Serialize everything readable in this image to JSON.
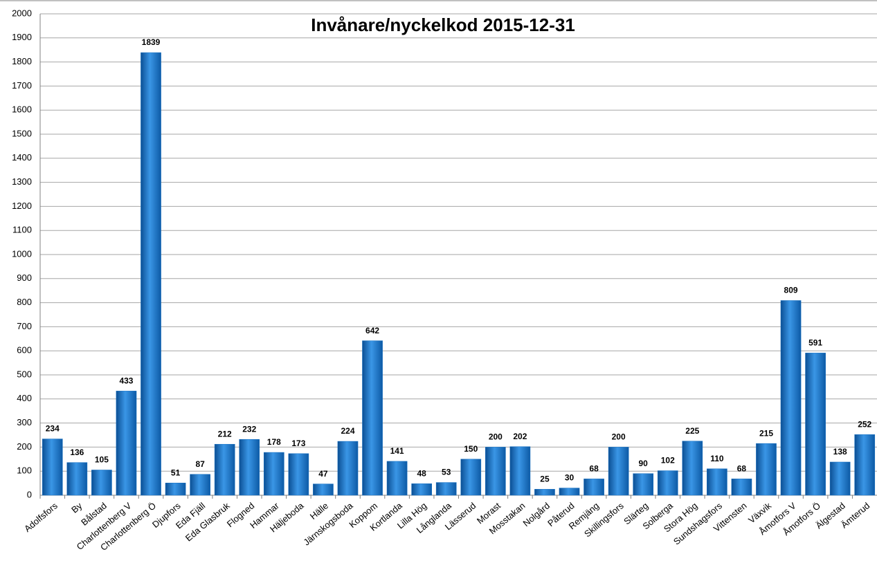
{
  "chart_data": {
    "type": "bar",
    "title": "Invånare/nyckelkod  2015-12-31",
    "categories": [
      "Adolfsfors",
      "By",
      "Bålstad",
      "Charlottenberg V",
      "Charlottenberg Ö",
      "Djupfors",
      "Eda Fjäll",
      "Eda Glasbruk",
      "Flogned",
      "Hammar",
      "Häljeboda",
      "Hälle",
      "Järnskogsboda",
      "Koppom",
      "Kortlanda",
      "Lilla Hög",
      "Långlanda",
      "Lässerud",
      "Morast",
      "Mosstakan",
      "Nolgård",
      "Påterud",
      "Remjäng",
      "Skillingsfors",
      "Slärteg",
      "Solberga",
      "Stora Hög",
      "Sundshagsfors",
      "Vittensten",
      "Växvik",
      "Åmotfors V",
      "Åmotfors Ö",
      "Älgestad",
      "Ämterud"
    ],
    "values": [
      234,
      136,
      105,
      433,
      1839,
      51,
      87,
      212,
      232,
      178,
      173,
      47,
      224,
      642,
      141,
      48,
      53,
      150,
      200,
      202,
      25,
      30,
      68,
      200,
      90,
      102,
      225,
      110,
      68,
      215,
      809,
      591,
      138,
      252
    ],
    "color": "#1a73c4",
    "ylim": [
      0,
      2000
    ],
    "yticks": [
      0,
      100,
      200,
      300,
      400,
      500,
      600,
      700,
      800,
      900,
      1000,
      1100,
      1200,
      1300,
      1400,
      1500,
      1600,
      1700,
      1800,
      1900,
      2000
    ],
    "grid": true
  }
}
